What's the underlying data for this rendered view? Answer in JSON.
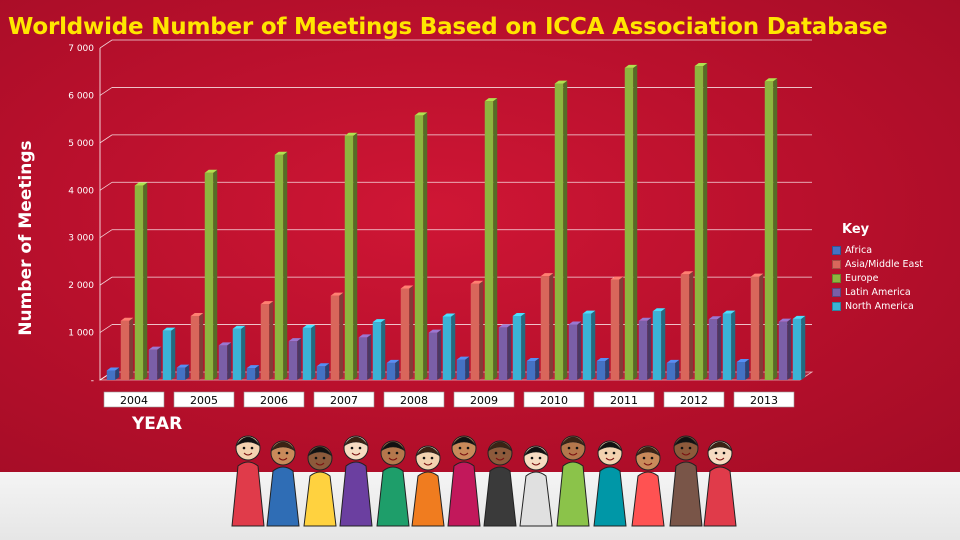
{
  "title": "Worldwide Number of Meetings Based on ICCA Association Database",
  "colors": {
    "background": "#c8102e",
    "title": "#ffe600",
    "Africa": "#4472c4",
    "Asia/Middle East": "#d9665b",
    "Europe": "#8db53f",
    "Latin America": "#7b5fa8",
    "North America": "#3bb3d6"
  },
  "chart_data": {
    "type": "bar",
    "title": "Worldwide Number of Meetings Based on ICCA Association Database",
    "xlabel": "YEAR",
    "ylabel": "Number of Meetings",
    "categories": [
      "2004",
      "2005",
      "2006",
      "2007",
      "2008",
      "2009",
      "2010",
      "2011",
      "2012",
      "2013"
    ],
    "ylim": [
      0,
      7000
    ],
    "yticks": [
      0,
      1000,
      2000,
      3000,
      4000,
      5000,
      6000,
      7000
    ],
    "ytick_labels": [
      "-",
      "1 000",
      "2 000",
      "3 000",
      "4 000",
      "5 000",
      "6 000",
      "7 000"
    ],
    "grid": true,
    "legend_position": "right",
    "legend_title": "Key",
    "series": [
      {
        "name": "Africa",
        "values": [
          200,
          260,
          250,
          290,
          360,
          430,
          400,
          400,
          360,
          380
        ]
      },
      {
        "name": "Asia/Middle East",
        "values": [
          1250,
          1350,
          1600,
          1780,
          1930,
          2030,
          2190,
          2120,
          2230,
          2180
        ]
      },
      {
        "name": "Europe",
        "values": [
          4100,
          4370,
          4750,
          5150,
          5580,
          5880,
          6250,
          6580,
          6620,
          6300
        ]
      },
      {
        "name": "Latin America",
        "values": [
          640,
          730,
          820,
          900,
          1000,
          1110,
          1170,
          1250,
          1280,
          1230
        ]
      },
      {
        "name": "North America",
        "values": [
          1040,
          1080,
          1100,
          1220,
          1340,
          1350,
          1400,
          1450,
          1400,
          1290
        ]
      }
    ]
  },
  "illustration": {
    "icon": "cartoon-crowd-of-people-in-national-costumes"
  }
}
